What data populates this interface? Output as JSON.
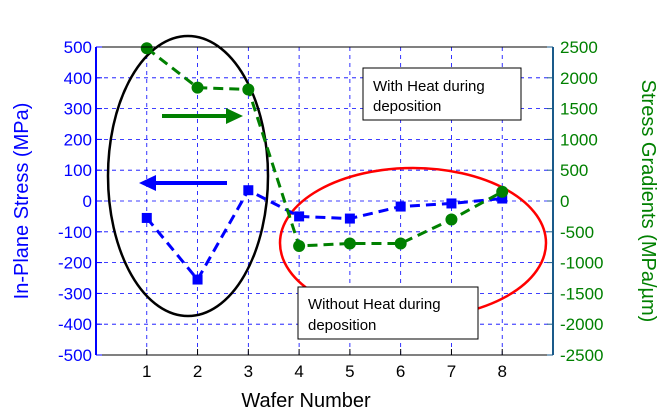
{
  "colors": {
    "left_axis": "#0000ff",
    "right_axis": "#008000",
    "grid": "#0000ff",
    "ellipse_left": "#000000",
    "ellipse_right": "#ff0000",
    "arrow_blue": "#0000ff",
    "arrow_green": "#008000",
    "frame": "#000000"
  },
  "chart_data": {
    "type": "line",
    "xlabel": "Wafer Number",
    "ylabel_left": "In-Plane Stress (MPa)",
    "ylabel_right": "Stress Gradients (MPa/µm)",
    "xlim": [
      0,
      9
    ],
    "ylim_left": [
      -500,
      500
    ],
    "ylim_right": [
      -2500,
      2500
    ],
    "x_ticks": [
      1,
      2,
      3,
      4,
      5,
      6,
      7,
      8
    ],
    "y_ticks_left": [
      500,
      400,
      300,
      200,
      100,
      0,
      -100,
      -200,
      -300,
      -400,
      -500
    ],
    "y_ticks_right": [
      2500,
      2000,
      1500,
      1000,
      500,
      0,
      -500,
      -1000,
      -1500,
      -2000,
      -2500
    ],
    "grid": true,
    "series": [
      {
        "axis": "left",
        "color": "#0000ff",
        "marker": "square",
        "line_style": "dashed",
        "x": [
          1,
          2,
          3,
          4,
          5,
          6,
          7,
          8
        ],
        "values": [
          -55,
          -255,
          35,
          -50,
          -57,
          -18,
          -8,
          8
        ]
      },
      {
        "axis": "right",
        "color": "#008000",
        "marker": "circle",
        "line_style": "dashed",
        "x": [
          1,
          2,
          3,
          4,
          5,
          6,
          7,
          8
        ],
        "values": [
          2480,
          1840,
          1810,
          -730,
          -690,
          -690,
          -300,
          150
        ]
      }
    ],
    "annotations": [
      {
        "text_lines": [
          "With Heat during",
          "deposition"
        ]
      },
      {
        "text_lines": [
          "Without Heat during",
          "deposition"
        ]
      }
    ]
  }
}
